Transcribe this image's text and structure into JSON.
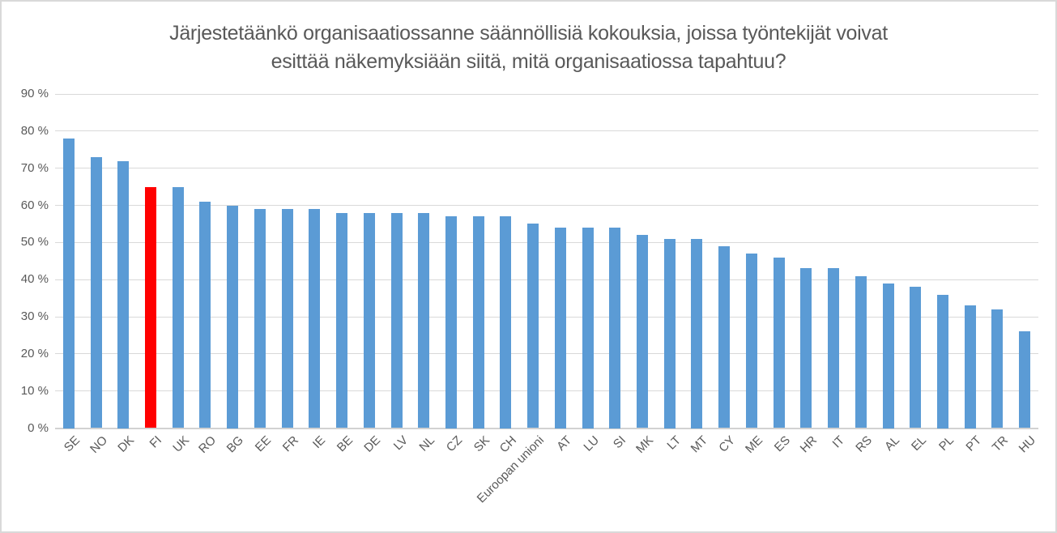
{
  "chart_data": {
    "type": "bar",
    "title": "Järjestetäänkö organisaatiossanne säännöllisiä kokouksia, joissa työntekijät voivat esittää näkemyksiään siitä, mitä organisaatiossa tapahtuu?",
    "title_lines": [
      "Järjestetäänkö organisaatiossanne säännöllisiä kokouksia, joissa työntekijät voivat",
      "esittää näkemyksiään siitä, mitä organisaatiossa tapahtuu?"
    ],
    "categories": [
      "SE",
      "NO",
      "DK",
      "FI",
      "UK",
      "RO",
      "BG",
      "EE",
      "FR",
      "IE",
      "BE",
      "DE",
      "LV",
      "NL",
      "CZ",
      "SK",
      "CH",
      "Euroopan unioni",
      "AT",
      "LU",
      "SI",
      "MK",
      "LT",
      "MT",
      "CY",
      "ME",
      "ES",
      "HR",
      "IT",
      "RS",
      "AL",
      "EL",
      "PL",
      "PT",
      "TR",
      "HU"
    ],
    "values": [
      78,
      73,
      72,
      65,
      65,
      61,
      60,
      59,
      59,
      59,
      58,
      58,
      58,
      58,
      57,
      57,
      57,
      55,
      54,
      54,
      54,
      52,
      51,
      51,
      49,
      47,
      46,
      43,
      43,
      41,
      39,
      38,
      36,
      33,
      32,
      26
    ],
    "value_unit": "%",
    "highlight_category": "FI",
    "colors": {
      "bar": "#5B9BD5",
      "highlight": "#FF0000",
      "gridline": "#D9D9D9",
      "axis_text": "#595959",
      "title_text": "#595959",
      "border": "#D9D9D9"
    },
    "ylim": [
      0,
      90
    ],
    "ytick_step": 10,
    "ytick_labels": [
      "0 %",
      "10 %",
      "20 %",
      "30 %",
      "40 %",
      "50 %",
      "60 %",
      "70 %",
      "80 %",
      "90 %"
    ],
    "grid": true,
    "legend_position": "none",
    "xlabel": "",
    "ylabel": ""
  }
}
